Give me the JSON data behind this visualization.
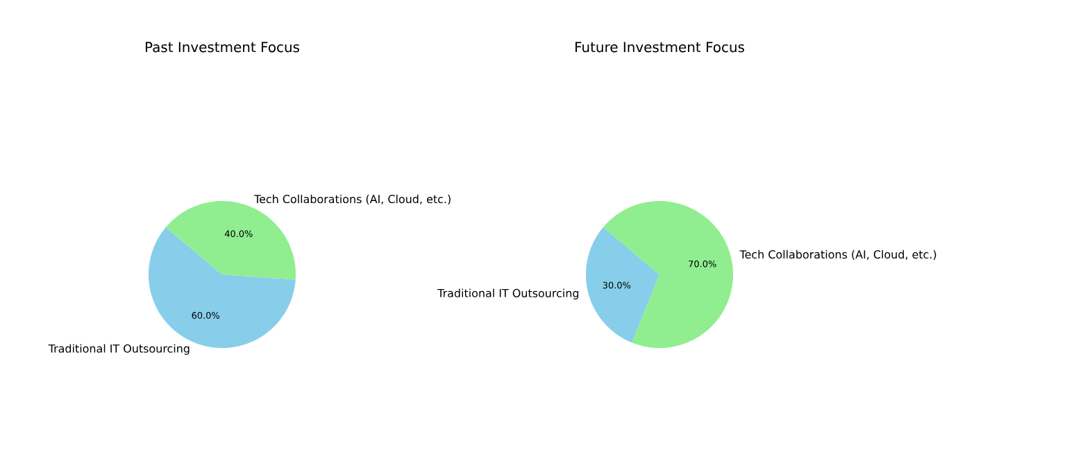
{
  "chart_data": [
    {
      "type": "pie",
      "title": "Past Investment Focus",
      "categories": [
        "Traditional IT Outsourcing",
        "Tech Collaborations (AI, Cloud, etc.)"
      ],
      "values": [
        60,
        40
      ],
      "colors": [
        "#87ceeb",
        "#90ee90"
      ],
      "value_labels": [
        "60.0%",
        "40.0%"
      ]
    },
    {
      "type": "pie",
      "title": "Future Investment Focus",
      "categories": [
        "Traditional IT Outsourcing",
        "Tech Collaborations (AI, Cloud, etc.)"
      ],
      "values": [
        30,
        70
      ],
      "colors": [
        "#87ceeb",
        "#90ee90"
      ],
      "value_labels": [
        "30.0%",
        "70.0%"
      ]
    }
  ]
}
